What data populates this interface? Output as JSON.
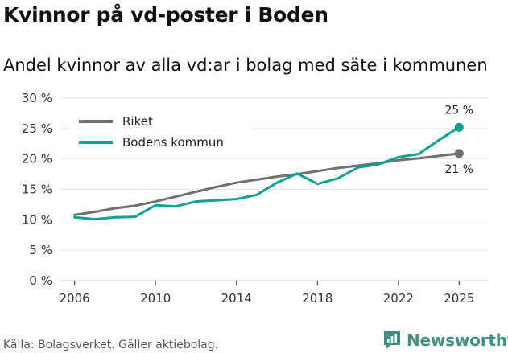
{
  "title": "Kvinnor på vd-poster i Boden",
  "subtitle": "Andel kvinnor av alla vd:ar i bolag med säte i kommunen",
  "source": "Källa: Bolagsverket. Gäller aktiebolag.",
  "brand": "Newsworthy",
  "colors": {
    "riket": "#707070",
    "boden": "#0fa294",
    "grid": "#e6e6e6",
    "axis": "#555555",
    "brand": "#3f8f83"
  },
  "chart_data": {
    "type": "line",
    "title": "Kvinnor på vd-poster i Boden",
    "subtitle": "Andel kvinnor av alla vd:ar i bolag med säte i kommunen",
    "xlabel": "",
    "ylabel": "",
    "xlim": [
      2005.3,
      2026.5
    ],
    "ylim": [
      0,
      30
    ],
    "x_ticks": [
      2006,
      2010,
      2014,
      2018,
      2022,
      2025
    ],
    "x_tick_labels": [
      "2006",
      "2010",
      "2014",
      "2018",
      "2022",
      "2025"
    ],
    "y_ticks": [
      0,
      5,
      10,
      15,
      20,
      25,
      30
    ],
    "y_tick_labels": [
      "0 %",
      "5 %",
      "10 %",
      "15 %",
      "20 %",
      "25 %",
      "30 %"
    ],
    "grid": true,
    "legend_position": "top-left",
    "series": [
      {
        "name": "Riket",
        "color": "#707070",
        "x": [
          2006,
          2007,
          2008,
          2009,
          2010,
          2011,
          2012,
          2013,
          2014,
          2015,
          2016,
          2017,
          2018,
          2019,
          2020,
          2021,
          2022,
          2023,
          2024,
          2025
        ],
        "values": [
          10.8,
          11.3,
          11.9,
          12.3,
          13.0,
          13.8,
          14.6,
          15.4,
          16.1,
          16.6,
          17.1,
          17.5,
          18.0,
          18.5,
          18.9,
          19.3,
          19.8,
          20.1,
          20.5,
          20.9
        ],
        "end_label": "21 %"
      },
      {
        "name": "Bodens kommun",
        "color": "#0fa294",
        "x": [
          2006,
          2007,
          2008,
          2009,
          2010,
          2011,
          2012,
          2013,
          2014,
          2015,
          2016,
          2017,
          2018,
          2019,
          2020,
          2021,
          2022,
          2023,
          2024,
          2025
        ],
        "values": [
          10.4,
          10.1,
          10.4,
          10.5,
          12.4,
          12.2,
          13.0,
          13.2,
          13.4,
          14.1,
          16.1,
          17.6,
          15.9,
          16.8,
          18.6,
          19.1,
          20.3,
          20.8,
          23.1,
          25.2
        ],
        "end_label": "25 %"
      }
    ]
  }
}
